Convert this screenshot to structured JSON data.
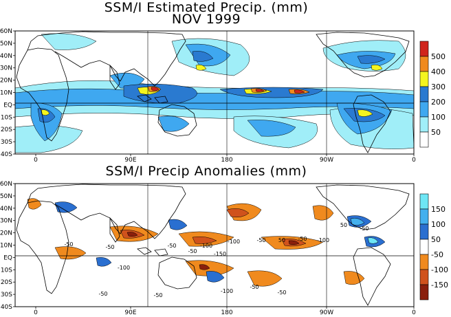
{
  "title": {
    "line1": "SSM/I Estimated Precip. (mm)",
    "line2": "NOV 1999"
  },
  "panel1": {
    "lat_labels": [
      "60N",
      "50N",
      "40N",
      "30N",
      "20N",
      "10N",
      "EQ",
      "10S",
      "20S",
      "30S",
      "40S"
    ],
    "lon_labels": [
      "0",
      "90E",
      "180",
      "90W",
      "0"
    ],
    "colorbar": {
      "labels": [
        "500",
        "400",
        "300",
        "200",
        "100",
        "50"
      ],
      "colors": [
        "#d0241c",
        "#f08a1e",
        "#f5f51e",
        "#2a7ad0",
        "#3fa8f0",
        "#a0eef8",
        "#ffffff"
      ]
    }
  },
  "panel2": {
    "title": "SSM/I Precip Anomalies (mm)",
    "lat_labels": [
      "60N",
      "50N",
      "40N",
      "30N",
      "20N",
      "10N",
      "EQ",
      "10S",
      "20S",
      "30S",
      "40S"
    ],
    "lon_labels": [
      "0",
      "90E",
      "180",
      "90W",
      "0"
    ],
    "colorbar": {
      "labels": [
        "150",
        "100",
        "50",
        "-50",
        "-100",
        "-150"
      ],
      "colors": [
        "#6ee6f5",
        "#43b0ee",
        "#2a6fd0",
        "#ffffff",
        "#f08a1e",
        "#d0521c",
        "#8a1f0c"
      ]
    },
    "contour_labels": [
      "-50",
      "-50",
      "-100",
      "-50",
      "-50",
      "-100",
      "-150",
      "-100",
      "-50",
      "50",
      "-50",
      "-100",
      "50",
      "-50",
      "-50",
      "-100",
      "-50",
      "-50",
      "-50"
    ]
  },
  "colors": {
    "light": "#a0eef8",
    "mid": "#3fa8f0",
    "dark": "#2a7ad0",
    "yellow": "#f5f51e",
    "orange": "#f08a1e",
    "red": "#d0241c",
    "darkred": "#8a1f0c",
    "anom_blue": "#2a6fd0",
    "anom_cyan": "#6ee6f5"
  }
}
